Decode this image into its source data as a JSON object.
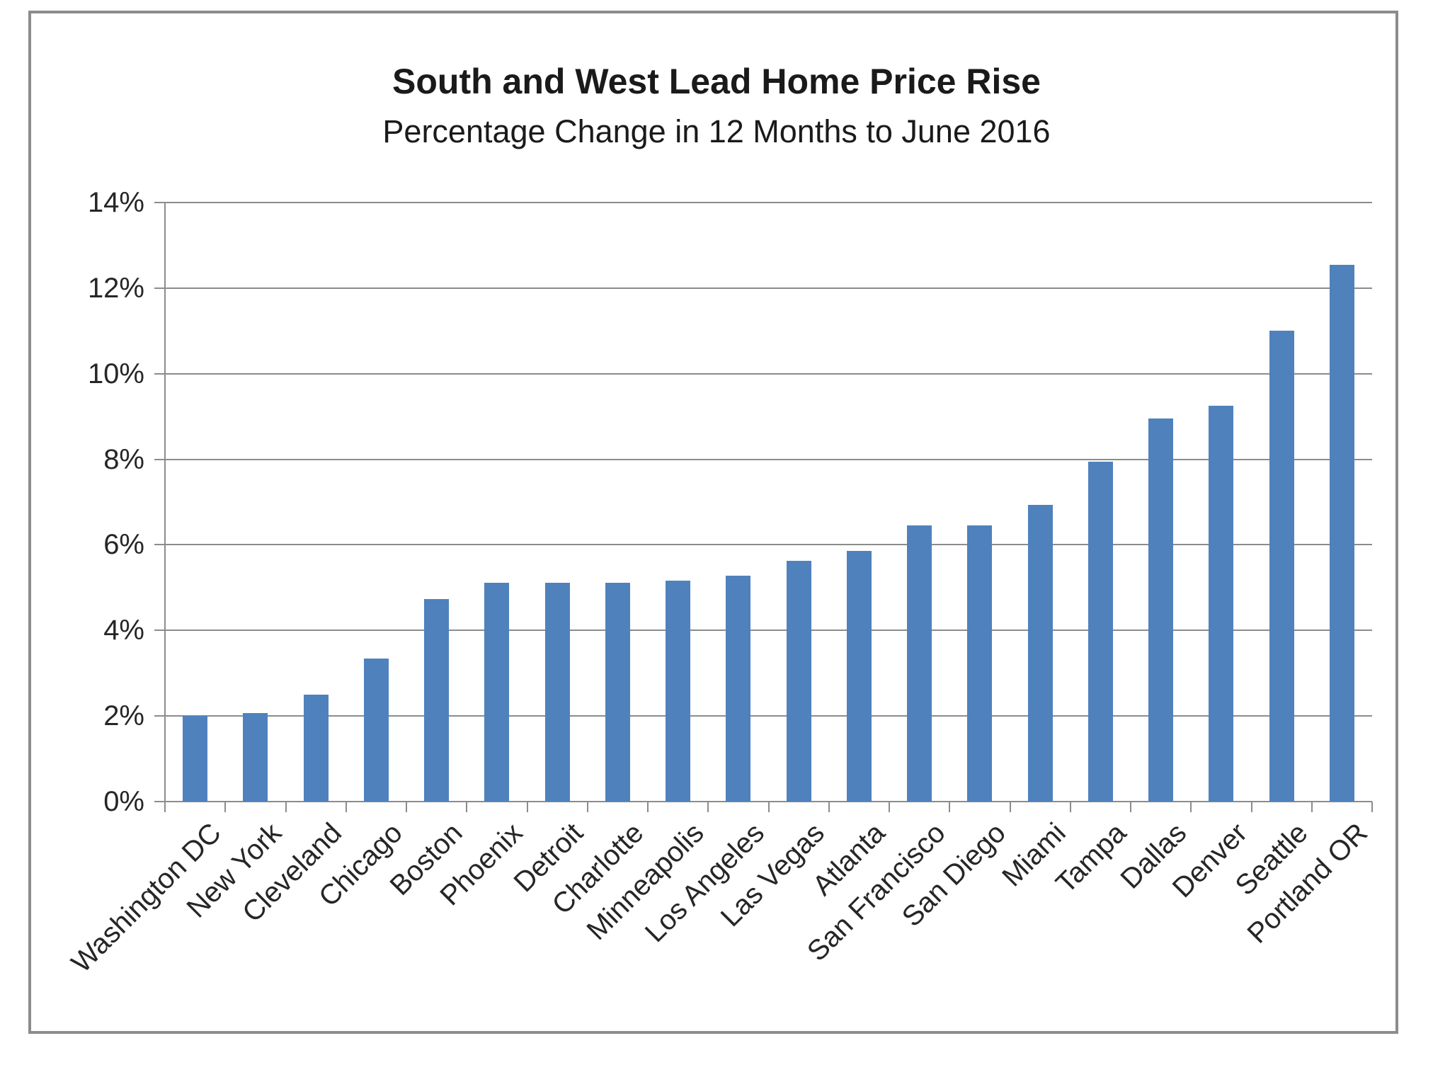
{
  "chart_data": {
    "type": "bar",
    "title": "South and West Lead Home Price Rise",
    "subtitle": "Percentage Change in 12 Months to June 2016",
    "categories": [
      "Washington DC",
      "New York",
      "Cleveland",
      "Chicago",
      "Boston",
      "Phoenix",
      "Detroit",
      "Charlotte",
      "Minneapolis",
      "Los Angeles",
      "Las Vegas",
      "Atlanta",
      "San Francisco",
      "San Diego",
      "Miami",
      "Tampa",
      "Dallas",
      "Denver",
      "Seattle",
      "Portland OR"
    ],
    "values": [
      2.0,
      2.07,
      2.5,
      3.35,
      4.73,
      5.12,
      5.12,
      5.12,
      5.16,
      5.28,
      5.63,
      5.85,
      6.45,
      6.45,
      6.93,
      7.95,
      8.95,
      9.25,
      11.0,
      12.55
    ],
    "xlabel": "",
    "ylabel": "",
    "ylim": [
      0,
      14
    ],
    "y_tick_step": 2,
    "y_tick_labels": [
      "0%",
      "2%",
      "4%",
      "6%",
      "8%",
      "10%",
      "12%",
      "14%"
    ],
    "grid": true,
    "legend": false,
    "bar_color": "#4F81BD",
    "gridline_color": "#8C8C8C",
    "frame_color": "#8C8C8C",
    "text_color": "#262626"
  }
}
